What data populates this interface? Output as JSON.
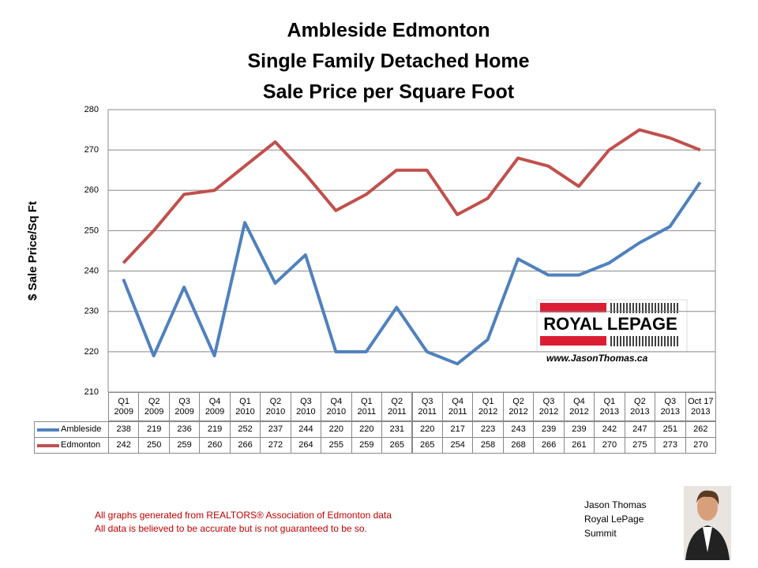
{
  "chart_data": {
    "type": "line",
    "title": [
      "Ambleside Edmonton",
      "Single Family Detached Home",
      "Sale Price per Square Foot"
    ],
    "y_label": "$ Sale Price/Sq Ft",
    "categories": [
      "Q1 2009",
      "Q2 2009",
      "Q3 2009",
      "Q4 2009",
      "Q1 2010",
      "Q2 2010",
      "Q3 2010",
      "Q4 2010",
      "Q1 2011",
      "Q2 2011",
      "Q3 2011",
      "Q4 2011",
      "Q1 2012",
      "Q2 2012",
      "Q3 2012",
      "Q4 2012",
      "Q1 2013",
      "Q2 2013",
      "Q3 2013",
      "Oct 17 2013"
    ],
    "series": [
      {
        "name": "Ambleside",
        "color": "#4f81bd",
        "values": [
          238,
          219,
          236,
          219,
          252,
          237,
          244,
          220,
          220,
          231,
          220,
          217,
          223,
          243,
          239,
          239,
          242,
          247,
          251,
          262
        ]
      },
      {
        "name": "Edmonton",
        "color": "#c0504d",
        "values": [
          242,
          250,
          259,
          260,
          266,
          272,
          264,
          255,
          259,
          265,
          265,
          254,
          258,
          268,
          266,
          261,
          270,
          275,
          273,
          270
        ]
      }
    ],
    "ylim": [
      210,
      280
    ],
    "yticks": [
      210,
      220,
      230,
      240,
      250,
      260,
      270,
      280
    ],
    "grid": true,
    "data_table": true
  },
  "branding": {
    "logo": "ROYAL LEPAGE",
    "website": "www.JasonThomas.ca"
  },
  "footer": {
    "notes": [
      "All graphs generated from REALTORS® Association of Edmonton data",
      "All data is believed to be accurate but is not guaranteed to be so."
    ],
    "agent": [
      "Jason Thomas",
      "Royal LePage",
      "Summit"
    ]
  }
}
